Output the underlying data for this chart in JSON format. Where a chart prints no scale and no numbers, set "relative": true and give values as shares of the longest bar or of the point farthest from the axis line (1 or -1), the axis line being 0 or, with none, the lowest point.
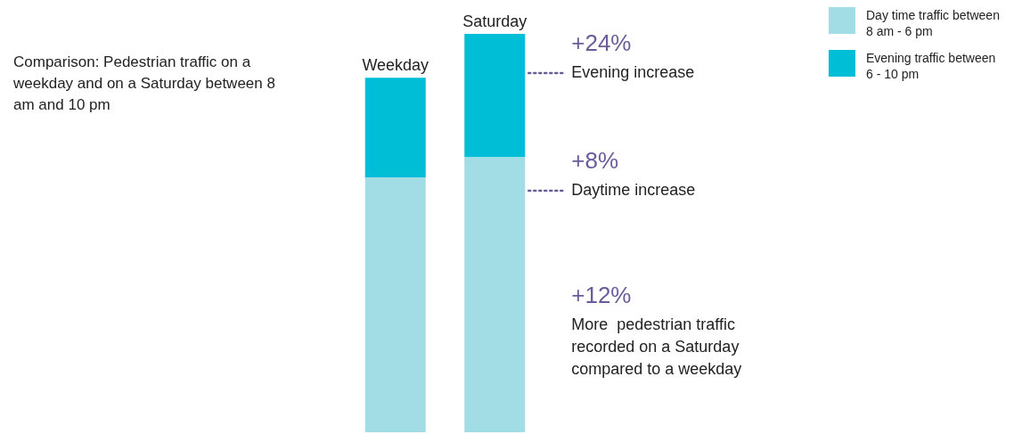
{
  "chart_data": {
    "type": "bar",
    "title": "Comparison: Pedestrian traffic on a weekday and on a Saturday between 8 am and 10 pm",
    "categories": [
      "Weekday",
      "Saturday"
    ],
    "stacked": true,
    "relative": true,
    "legend": "top right",
    "series": [
      {
        "name": "Day time traffic between 8 am - 6 pm",
        "color": "#a2dde6",
        "values": [
          0.64,
          0.69
        ]
      },
      {
        "name": "Evening traffic between 6 - 10 pm",
        "color": "#00bed6",
        "values": [
          0.25,
          0.31
        ]
      }
    ],
    "annotations": [
      "+24%\nEvening increase",
      "+8%\nDaytime increase",
      "+12%\nMore  pedestrian traffic\nrecorded on a Saturday\ncompared to a weekday"
    ]
  }
}
